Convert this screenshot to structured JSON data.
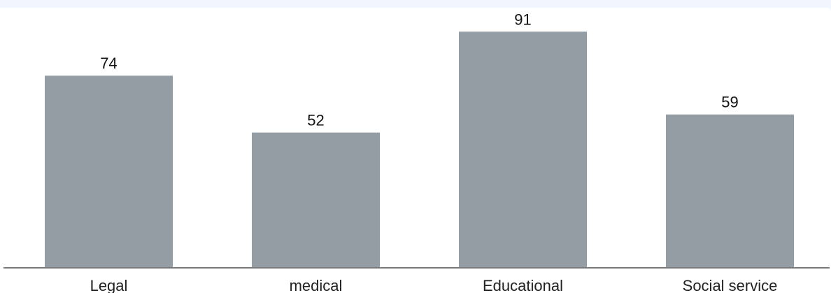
{
  "colors": {
    "page_background": "#f1f5fd",
    "panel_background": "#ffffff",
    "bar": "#939da3",
    "axis": "#7a7a7a"
  },
  "chart_data": {
    "type": "bar",
    "title": "",
    "xlabel": "",
    "ylabel": "",
    "categories": [
      "Legal",
      "medical",
      "Educational",
      "Social service"
    ],
    "values": [
      74,
      52,
      91,
      59
    ],
    "ylim": [
      0,
      100
    ],
    "grid": false,
    "legend": "none",
    "data_labels": true
  }
}
